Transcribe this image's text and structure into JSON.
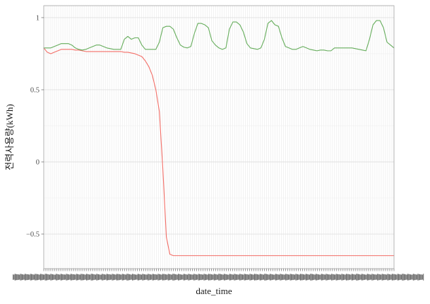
{
  "chart_data": {
    "type": "line",
    "xlabel": "date_time",
    "ylabel": "전력사용량(kWh)",
    "ylim": [
      -0.74,
      1.083
    ],
    "yticks": [
      1,
      0.5,
      0,
      -0.5
    ],
    "ytick_labels": [
      "1",
      "0.5",
      "0",
      "−0.5"
    ],
    "grid": true,
    "legend": "none",
    "series": [
      {
        "color": "#f36f68",
        "values": [
          0.79,
          0.76,
          0.75,
          0.76,
          0.77,
          0.78,
          0.78,
          0.78,
          0.78,
          0.775,
          0.775,
          0.77,
          0.765,
          0.765,
          0.765,
          0.765,
          0.765,
          0.765,
          0.765,
          0.765,
          0.765,
          0.765,
          0.765,
          0.76,
          0.76,
          0.755,
          0.75,
          0.74,
          0.73,
          0.7,
          0.66,
          0.6,
          0.5,
          0.35,
          -0.05,
          -0.52,
          -0.64,
          -0.65,
          -0.65,
          -0.65,
          -0.65,
          -0.65,
          -0.65,
          -0.65,
          -0.65,
          -0.65,
          -0.65,
          -0.65,
          -0.65,
          -0.65,
          -0.65,
          -0.65,
          -0.65,
          -0.65,
          -0.65,
          -0.65,
          -0.65,
          -0.65,
          -0.65,
          -0.65,
          -0.65,
          -0.65,
          -0.65,
          -0.65,
          -0.65,
          -0.65,
          -0.65,
          -0.65,
          -0.65,
          -0.65,
          -0.65,
          -0.65,
          -0.65,
          -0.65,
          -0.65,
          -0.65,
          -0.65,
          -0.65,
          -0.65,
          -0.65,
          -0.65,
          -0.65,
          -0.65,
          -0.65,
          -0.65,
          -0.65,
          -0.65,
          -0.65,
          -0.65,
          -0.65,
          -0.65,
          -0.65,
          -0.65,
          -0.65,
          -0.65,
          -0.65,
          -0.65,
          -0.65,
          -0.65,
          -0.65,
          -0.65
        ]
      },
      {
        "color": "#66ad5c",
        "values": [
          0.79,
          0.79,
          0.79,
          0.8,
          0.81,
          0.82,
          0.82,
          0.82,
          0.81,
          0.79,
          0.78,
          0.775,
          0.78,
          0.79,
          0.8,
          0.81,
          0.81,
          0.8,
          0.79,
          0.785,
          0.78,
          0.78,
          0.78,
          0.85,
          0.87,
          0.85,
          0.86,
          0.86,
          0.81,
          0.78,
          0.78,
          0.78,
          0.78,
          0.83,
          0.93,
          0.94,
          0.94,
          0.92,
          0.86,
          0.81,
          0.795,
          0.79,
          0.8,
          0.89,
          0.96,
          0.96,
          0.95,
          0.93,
          0.84,
          0.81,
          0.79,
          0.78,
          0.79,
          0.92,
          0.97,
          0.97,
          0.95,
          0.9,
          0.82,
          0.79,
          0.785,
          0.78,
          0.79,
          0.85,
          0.96,
          0.98,
          0.95,
          0.94,
          0.86,
          0.8,
          0.79,
          0.78,
          0.78,
          0.79,
          0.8,
          0.79,
          0.78,
          0.775,
          0.77,
          0.775,
          0.775,
          0.77,
          0.77,
          0.79,
          0.79,
          0.79,
          0.79,
          0.79,
          0.79,
          0.785,
          0.78,
          0.775,
          0.77,
          0.85,
          0.95,
          0.98,
          0.98,
          0.93,
          0.83,
          0.81,
          0.79
        ]
      }
    ]
  }
}
